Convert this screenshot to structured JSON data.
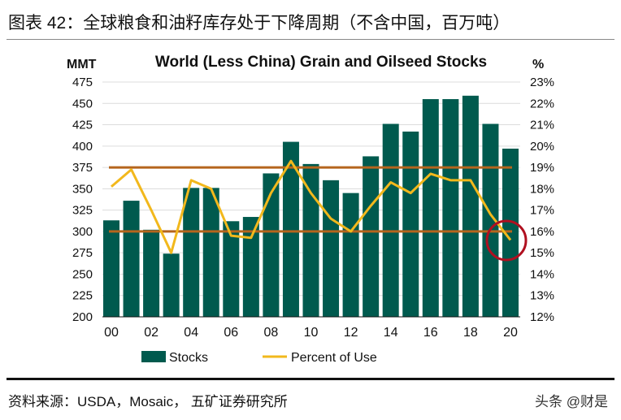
{
  "header": {
    "title": "图表 42：全球粮食和油籽库存处于下降周期（不含中国，百万吨）"
  },
  "footer": {
    "source": "资料来源：USDA，Mosaic， 五矿证券研究所",
    "watermark": "头条 @财是"
  },
  "chart_data": {
    "type": "bar+line",
    "title": "World (Less China) Grain and Oilseed Stocks",
    "ylabel_left": "MMT",
    "ylabel_right": "%",
    "ylim_left": [
      200,
      475
    ],
    "ylim_right": [
      12,
      23
    ],
    "yticks_left": [
      "200",
      "225",
      "250",
      "275",
      "300",
      "325",
      "350",
      "375",
      "400",
      "425",
      "450",
      "475"
    ],
    "yticks_right": [
      "12%",
      "13%",
      "14%",
      "15%",
      "16%",
      "17%",
      "18%",
      "19%",
      "20%",
      "21%",
      "22%",
      "23%"
    ],
    "categories": [
      "00",
      "01",
      "02",
      "03",
      "04",
      "05",
      "06",
      "07",
      "08",
      "09",
      "10",
      "11",
      "12",
      "13",
      "14",
      "15",
      "16",
      "17",
      "18",
      "19",
      "20"
    ],
    "xtick_labels": [
      "00",
      "02",
      "04",
      "06",
      "08",
      "10",
      "12",
      "14",
      "16",
      "18",
      "20"
    ],
    "series": [
      {
        "name": "Stocks",
        "type": "bar",
        "axis": "left",
        "color": "#005a4e",
        "values": [
          313,
          336,
          302,
          274,
          351,
          351,
          312,
          317,
          368,
          405,
          379,
          360,
          345,
          388,
          426,
          417,
          455,
          455,
          459,
          426,
          397
        ]
      },
      {
        "name": "Percent of Use",
        "type": "line",
        "axis": "right",
        "color": "#f2b81c",
        "values": [
          18.1,
          18.9,
          17.0,
          15.0,
          18.4,
          18.0,
          15.8,
          15.7,
          17.8,
          19.3,
          17.8,
          16.6,
          16.0,
          17.2,
          18.3,
          17.8,
          18.7,
          18.4,
          18.4,
          16.8,
          15.6
        ]
      }
    ],
    "reference_lines": {
      "values": [
        375,
        300
      ],
      "color": "#b5651d"
    },
    "highlight": {
      "category": "20",
      "shape": "circle",
      "color": "#b01020"
    },
    "grid": true,
    "legend": "bottom"
  }
}
